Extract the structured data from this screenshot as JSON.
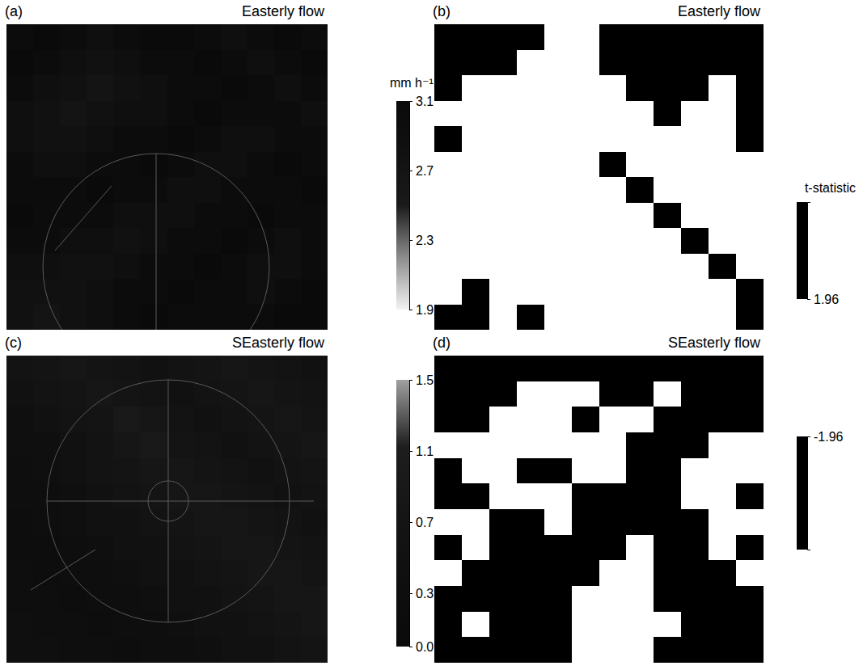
{
  "chart_data": [
    {
      "type": "heatmap",
      "label": "(a)",
      "title": "Easterly flow",
      "cells": [
        [
          3.0,
          3.1,
          3.0,
          2.9,
          3.0,
          3.1,
          3.1,
          3.0,
          2.9,
          3.0,
          3.1,
          3.0
        ],
        [
          3.1,
          3.0,
          2.9,
          2.8,
          2.9,
          3.0,
          3.0,
          3.1,
          3.0,
          2.9,
          3.0,
          3.1
        ],
        [
          3.0,
          2.9,
          2.8,
          2.7,
          2.8,
          2.9,
          3.0,
          3.0,
          3.1,
          3.0,
          2.9,
          3.0
        ],
        [
          2.9,
          2.8,
          2.7,
          2.8,
          2.9,
          2.9,
          3.0,
          3.1,
          3.0,
          3.0,
          3.0,
          2.9
        ],
        [
          2.9,
          2.8,
          2.8,
          2.9,
          3.0,
          3.0,
          3.1,
          3.0,
          2.9,
          2.9,
          3.0,
          3.0
        ],
        [
          3.0,
          2.9,
          2.9,
          3.0,
          3.0,
          3.1,
          3.0,
          2.9,
          2.9,
          3.0,
          3.1,
          3.0
        ],
        [
          3.0,
          3.0,
          3.0,
          3.1,
          3.0,
          3.0,
          2.9,
          2.9,
          3.0,
          3.0,
          3.0,
          3.1
        ],
        [
          3.1,
          3.0,
          3.0,
          3.0,
          2.9,
          2.9,
          2.9,
          3.0,
          3.0,
          3.1,
          3.0,
          3.0
        ],
        [
          3.0,
          3.0,
          2.9,
          2.9,
          2.8,
          2.9,
          3.0,
          3.0,
          3.1,
          3.0,
          2.9,
          3.0
        ],
        [
          2.9,
          2.9,
          2.8,
          2.8,
          2.9,
          3.0,
          3.0,
          3.1,
          3.0,
          2.9,
          2.9,
          3.0
        ],
        [
          2.8,
          2.8,
          2.8,
          2.9,
          3.0,
          3.0,
          3.1,
          3.0,
          3.0,
          2.9,
          3.0,
          3.1
        ],
        [
          2.8,
          2.7,
          2.8,
          2.9,
          3.0,
          3.1,
          3.0,
          3.0,
          3.0,
          3.0,
          3.1,
          3.1
        ]
      ],
      "colorbar": {
        "label": "mm h⁻¹",
        "range": [
          1.9,
          3.1
        ],
        "ticks": [
          1.9,
          2.3,
          2.7,
          3.1
        ],
        "colors": [
          "#f2f2f2",
          "#8c8c8c",
          "#1a1a1a",
          "#111111",
          "#0a0a0a"
        ]
      }
    },
    {
      "type": "heatmap",
      "label": "(b)",
      "title": "Easterly flow",
      "cells": [
        [
          2.8,
          2.8,
          2.8,
          2.8,
          0.9,
          0.9,
          2.8,
          2.8,
          2.8,
          2.8,
          2.8,
          2.8
        ],
        [
          2.8,
          2.8,
          2.8,
          0.9,
          0.9,
          0.9,
          2.8,
          2.8,
          2.8,
          2.8,
          2.8,
          2.8
        ],
        [
          2.8,
          0.9,
          0.9,
          0.9,
          0.9,
          0.9,
          0.9,
          2.8,
          2.8,
          2.8,
          0.9,
          2.8
        ],
        [
          0.9,
          0.9,
          0.9,
          0.9,
          0.9,
          0.9,
          0.9,
          0.9,
          2.8,
          0.9,
          0.9,
          2.8
        ],
        [
          2.8,
          0.9,
          0.9,
          0.9,
          0.9,
          0.9,
          0.9,
          0.9,
          0.9,
          0.9,
          0.9,
          2.8
        ],
        [
          0.9,
          0.9,
          0.9,
          0.9,
          0.9,
          0.9,
          2.8,
          0.9,
          0.9,
          0.9,
          0.9,
          0.9
        ],
        [
          0.9,
          0.9,
          0.9,
          0.9,
          0.9,
          0.9,
          0.9,
          2.8,
          0.9,
          0.9,
          0.9,
          0.9
        ],
        [
          0.9,
          0.9,
          0.9,
          0.9,
          0.9,
          0.9,
          0.9,
          0.9,
          2.8,
          0.9,
          0.9,
          0.9
        ],
        [
          0.9,
          0.9,
          0.9,
          0.9,
          0.9,
          0.9,
          0.9,
          0.9,
          0.9,
          2.8,
          0.9,
          0.9
        ],
        [
          0.9,
          0.9,
          0.9,
          0.9,
          0.9,
          0.9,
          0.9,
          0.9,
          0.9,
          0.9,
          2.8,
          0.9
        ],
        [
          0.9,
          2.8,
          0.9,
          0.9,
          0.9,
          0.9,
          0.9,
          0.9,
          0.9,
          0.9,
          0.9,
          2.8
        ],
        [
          2.8,
          2.8,
          0.9,
          2.8,
          0.9,
          0.9,
          0.9,
          0.9,
          0.9,
          0.9,
          0.9,
          2.8
        ]
      ],
      "colorbar": {
        "label": "t-statistic",
        "range": [
          1.96,
          4.0
        ],
        "ticks": [
          1.96
        ],
        "colors": [
          "#000000"
        ]
      }
    },
    {
      "type": "heatmap",
      "label": "(c)",
      "title": "SEasterly flow",
      "cells": [
        [
          0.6,
          0.7,
          0.8,
          0.7,
          0.6,
          0.5,
          0.6,
          0.7,
          0.8,
          0.7,
          0.6,
          0.5
        ],
        [
          0.5,
          0.6,
          0.7,
          0.8,
          0.7,
          0.6,
          0.5,
          0.6,
          0.7,
          0.8,
          0.7,
          0.6
        ],
        [
          0.4,
          0.5,
          0.6,
          0.7,
          0.9,
          0.8,
          0.6,
          0.5,
          0.6,
          0.7,
          0.8,
          0.7
        ],
        [
          0.4,
          0.4,
          0.5,
          0.6,
          0.8,
          0.9,
          0.7,
          0.6,
          0.5,
          0.6,
          0.7,
          0.8
        ],
        [
          0.3,
          0.4,
          0.5,
          0.6,
          0.7,
          0.8,
          0.8,
          0.7,
          0.6,
          0.5,
          0.6,
          0.7
        ],
        [
          0.3,
          0.3,
          0.4,
          0.5,
          0.6,
          0.7,
          0.8,
          0.8,
          0.7,
          0.6,
          0.5,
          0.6
        ],
        [
          0.2,
          0.3,
          0.4,
          0.5,
          0.5,
          0.6,
          0.7,
          0.8,
          0.8,
          0.7,
          0.6,
          0.5
        ],
        [
          0.2,
          0.2,
          0.3,
          0.4,
          0.5,
          0.5,
          0.6,
          0.7,
          0.8,
          0.8,
          0.7,
          0.6
        ],
        [
          0.3,
          0.2,
          0.3,
          0.3,
          0.4,
          0.5,
          0.5,
          0.6,
          0.7,
          0.8,
          0.8,
          0.7
        ],
        [
          0.3,
          0.3,
          0.2,
          0.3,
          0.3,
          0.4,
          0.5,
          0.5,
          0.6,
          0.7,
          0.8,
          0.8
        ],
        [
          0.4,
          0.3,
          0.3,
          0.2,
          0.3,
          0.3,
          0.4,
          0.5,
          0.5,
          0.6,
          0.7,
          0.8
        ],
        [
          0.4,
          0.4,
          0.3,
          0.3,
          0.2,
          0.3,
          0.3,
          0.4,
          0.5,
          0.5,
          0.6,
          0.7
        ]
      ],
      "colorbar": {
        "range": [
          0,
          1.5
        ],
        "ticks": [
          {
            "value": 0,
            "label": "0.0"
          },
          0.3,
          0.7,
          1.1,
          1.5
        ],
        "colors": [
          "#0a0a0a",
          "#0f0f0f",
          "#151515",
          "#1e1e1e",
          "#a0a0a0"
        ]
      }
    },
    {
      "type": "heatmap",
      "label": "(d)",
      "title": "SEasterly flow",
      "cells": [
        [
          -2.8,
          -2.8,
          -2.8,
          -2.8,
          -2.8,
          -2.8,
          -2.8,
          -2.8,
          -2.8,
          -2.8,
          -2.8,
          -2.8
        ],
        [
          -2.8,
          -2.8,
          -2.8,
          -0.9,
          -0.9,
          -0.9,
          -2.8,
          -2.8,
          -0.9,
          -2.8,
          -2.8,
          -2.8
        ],
        [
          -2.8,
          -2.8,
          -0.9,
          -0.9,
          -0.9,
          -2.8,
          -0.9,
          -0.9,
          -2.8,
          -2.8,
          -2.8,
          -2.8
        ],
        [
          -0.9,
          -0.9,
          -0.9,
          -0.9,
          -0.9,
          -0.9,
          -0.9,
          -2.8,
          -2.8,
          -2.8,
          -0.9,
          -0.9
        ],
        [
          -2.8,
          -0.9,
          -0.9,
          -2.8,
          -2.8,
          -0.9,
          -0.9,
          -2.8,
          -2.8,
          -0.9,
          -0.9,
          -0.9
        ],
        [
          -2.8,
          -2.8,
          -0.9,
          -0.9,
          -0.9,
          -2.8,
          -2.8,
          -2.8,
          -2.8,
          -0.9,
          -0.9,
          -2.8
        ],
        [
          -0.9,
          -0.9,
          -2.8,
          -2.8,
          -0.9,
          -2.8,
          -2.8,
          -2.8,
          -2.8,
          -2.8,
          -0.9,
          -0.9
        ],
        [
          -2.8,
          -0.9,
          -2.8,
          -2.8,
          -2.8,
          -2.8,
          -2.8,
          -0.9,
          -2.8,
          -2.8,
          -0.9,
          -2.8
        ],
        [
          -0.9,
          -2.8,
          -2.8,
          -2.8,
          -2.8,
          -2.8,
          -0.9,
          -0.9,
          -2.8,
          -2.8,
          -2.8,
          -0.9
        ],
        [
          -2.8,
          -2.8,
          -2.8,
          -2.8,
          -2.8,
          -0.9,
          -0.9,
          -0.9,
          -2.8,
          -2.8,
          -2.8,
          -2.8
        ],
        [
          -2.8,
          -0.9,
          -2.8,
          -2.8,
          -2.8,
          -0.9,
          -0.9,
          -0.9,
          -0.9,
          -2.8,
          -2.8,
          -2.8
        ],
        [
          -2.8,
          -2.8,
          -2.8,
          -2.8,
          -2.8,
          -0.9,
          -0.9,
          -0.9,
          -2.8,
          -2.8,
          -2.8,
          -2.8
        ]
      ],
      "colorbar": {
        "range": [
          -4.0,
          -1.96
        ],
        "ticks": [
          -1.96
        ],
        "colors": [
          "#000000"
        ]
      }
    }
  ]
}
